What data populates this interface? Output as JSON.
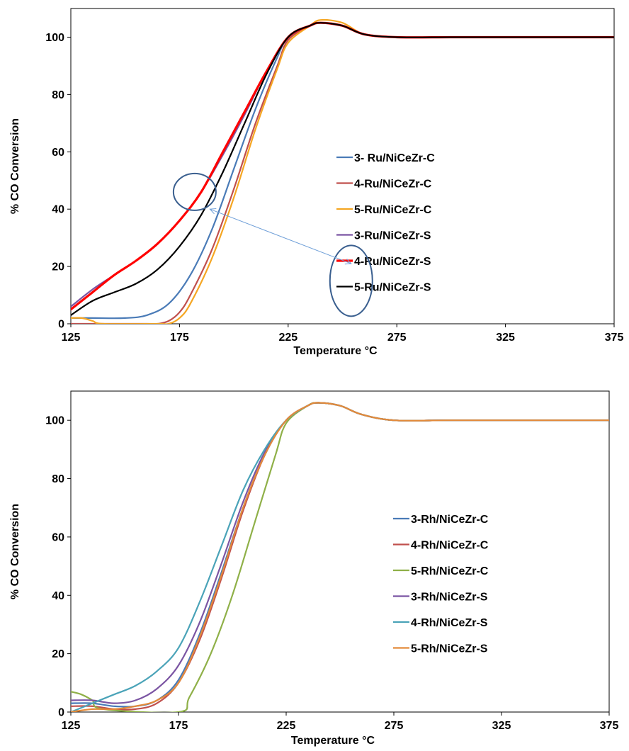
{
  "chart_data": [
    {
      "type": "line",
      "xlabel": "Temperature °C",
      "ylabel": "% CO Conversion",
      "xlim": [
        125,
        375
      ],
      "ylim": [
        0,
        110
      ],
      "xticks": [
        125,
        175,
        225,
        275,
        325,
        375
      ],
      "yticks": [
        0,
        20,
        40,
        60,
        80,
        100
      ],
      "grid": false,
      "legend_position": "center-right",
      "annotations": [
        {
          "shape": "ellipse",
          "center": [
            182,
            46
          ],
          "label": "highlighted region on curves"
        },
        {
          "shape": "ellipse",
          "center": [
            254,
            15
          ],
          "label": "legend entries 4-Ru/NiCeZr-S and 5-Ru/NiCeZr-S"
        },
        {
          "shape": "arrow",
          "from": [
            254,
            21
          ],
          "to": [
            189,
            40
          ]
        }
      ],
      "series": [
        {
          "name": "3- Ru/NiCeZr-C",
          "color": "#4a7bb7",
          "x": [
            125,
            135,
            150,
            160,
            170,
            180,
            190,
            200,
            210,
            220,
            225,
            235,
            240,
            250,
            260,
            275,
            300,
            325,
            350,
            375
          ],
          "y": [
            2,
            2,
            2,
            3,
            7,
            17,
            33,
            54,
            75,
            93,
            100,
            104,
            105,
            104,
            101,
            100,
            100,
            100,
            100,
            100
          ]
        },
        {
          "name": "4-Ru/NiCeZr-C",
          "color": "#c0504d",
          "x": [
            125,
            130,
            160,
            165,
            170,
            175,
            180,
            190,
            200,
            210,
            220,
            225,
            235,
            240,
            250,
            260,
            275,
            300,
            325,
            350,
            375
          ],
          "y": [
            0,
            0,
            0,
            0,
            1,
            4,
            10,
            26,
            47,
            70,
            90,
            99,
            104,
            105,
            104,
            101,
            100,
            100,
            100,
            100,
            100
          ]
        },
        {
          "name": "5-Ru/NiCeZr-C",
          "color": "#f5a623",
          "x": [
            125,
            130,
            135,
            140,
            165,
            170,
            175,
            180,
            190,
            200,
            210,
            220,
            225,
            235,
            240,
            250,
            260,
            275,
            300,
            325,
            350,
            375
          ],
          "y": [
            2,
            2,
            1,
            0,
            0,
            0,
            2,
            7,
            23,
            44,
            68,
            89,
            98,
            104,
            106,
            105,
            101,
            100,
            100,
            100,
            100,
            100
          ]
        },
        {
          "name": "3-Ru/NiCeZr-S",
          "color": "#7b55a3",
          "x": [
            125,
            135,
            145,
            155,
            165,
            175,
            185,
            195,
            205,
            215,
            225,
            235,
            240,
            250,
            260,
            275,
            300,
            325,
            350,
            375
          ],
          "y": [
            6,
            12,
            17,
            22,
            28,
            36,
            46,
            59,
            73,
            88,
            100,
            104,
            105,
            104,
            101,
            100,
            100,
            100,
            100,
            100
          ]
        },
        {
          "name": "4-Ru/NiCeZr-S",
          "color": "#ff0000",
          "x": [
            125,
            135,
            145,
            155,
            165,
            175,
            185,
            195,
            205,
            215,
            225,
            235,
            240,
            250,
            260,
            275,
            300,
            325,
            350,
            375
          ],
          "y": [
            5,
            11,
            17,
            22,
            28,
            36,
            46,
            60,
            74,
            88,
            100,
            104,
            105,
            104,
            101,
            100,
            100,
            100,
            100,
            100
          ]
        },
        {
          "name": "5-Ru/NiCeZr-S",
          "color": "#000000",
          "x": [
            125,
            135,
            145,
            155,
            165,
            175,
            185,
            195,
            205,
            215,
            225,
            235,
            240,
            250,
            260,
            275,
            300,
            325,
            350,
            375
          ],
          "y": [
            3,
            8,
            11,
            14,
            19,
            27,
            38,
            53,
            70,
            87,
            100,
            104,
            105,
            104,
            101,
            100,
            100,
            100,
            100,
            100
          ]
        }
      ]
    },
    {
      "type": "line",
      "xlabel": "Temperature °C",
      "ylabel": "% CO Conversion",
      "xlim": [
        125,
        375
      ],
      "ylim": [
        0,
        110
      ],
      "xticks": [
        125,
        175,
        225,
        275,
        325,
        375
      ],
      "yticks": [
        0,
        20,
        40,
        60,
        80,
        100
      ],
      "grid": false,
      "legend_position": "center-right",
      "series": [
        {
          "name": "3-Rh/NiCeZr-C",
          "color": "#4a7bb7",
          "x": [
            125,
            135,
            145,
            155,
            165,
            175,
            185,
            195,
            205,
            215,
            225,
            235,
            240,
            250,
            260,
            275,
            300,
            325,
            350,
            375
          ],
          "y": [
            3,
            3,
            2,
            2,
            4,
            11,
            27,
            48,
            70,
            88,
            100,
            105,
            106,
            105,
            102,
            100,
            100,
            100,
            100,
            100
          ]
        },
        {
          "name": "4-Rh/NiCeZr-C",
          "color": "#c0504d",
          "x": [
            125,
            135,
            145,
            155,
            165,
            175,
            185,
            195,
            205,
            215,
            225,
            235,
            240,
            250,
            260,
            275,
            300,
            325,
            350,
            375
          ],
          "y": [
            2,
            2,
            1,
            1,
            3,
            10,
            25,
            46,
            69,
            88,
            100,
            105,
            106,
            105,
            102,
            100,
            100,
            100,
            100,
            100
          ]
        },
        {
          "name": "5-Rh/NiCeZr-C",
          "color": "#8fb048",
          "x": [
            125,
            130,
            135,
            140,
            175,
            180,
            190,
            200,
            210,
            220,
            225,
            235,
            240,
            250,
            260,
            275,
            300,
            325,
            350,
            375
          ],
          "y": [
            7,
            6,
            4,
            1,
            0,
            5,
            20,
            40,
            64,
            88,
            99,
            105,
            106,
            105,
            102,
            100,
            100,
            100,
            100,
            100
          ]
        },
        {
          "name": "3-Rh/NiCeZr-S",
          "color": "#7b55a3",
          "x": [
            125,
            135,
            145,
            155,
            165,
            175,
            185,
            195,
            205,
            215,
            225,
            235,
            240,
            250,
            260,
            275,
            300,
            325,
            350,
            375
          ],
          "y": [
            4,
            4,
            3,
            4,
            8,
            16,
            31,
            51,
            72,
            89,
            100,
            105,
            106,
            105,
            102,
            100,
            100,
            100,
            100,
            100
          ]
        },
        {
          "name": "4-Rh/NiCeZr-S",
          "color": "#4aa3b8",
          "x": [
            125,
            135,
            145,
            155,
            165,
            175,
            185,
            195,
            205,
            215,
            225,
            235,
            240,
            250,
            260,
            275,
            300,
            325,
            350,
            375
          ],
          "y": [
            0,
            3,
            6,
            9,
            14,
            22,
            38,
            57,
            76,
            90,
            100,
            105,
            106,
            105,
            102,
            100,
            100,
            100,
            100,
            100
          ]
        },
        {
          "name": "5-Rh/NiCeZr-S",
          "color": "#e38a3a",
          "x": [
            125,
            135,
            145,
            155,
            165,
            175,
            185,
            195,
            205,
            215,
            225,
            235,
            240,
            250,
            260,
            275,
            300,
            325,
            350,
            375
          ],
          "y": [
            0,
            1,
            1,
            2,
            4,
            10,
            26,
            47,
            70,
            88,
            100,
            105,
            106,
            105,
            102,
            100,
            100,
            100,
            100,
            100
          ]
        }
      ]
    }
  ]
}
